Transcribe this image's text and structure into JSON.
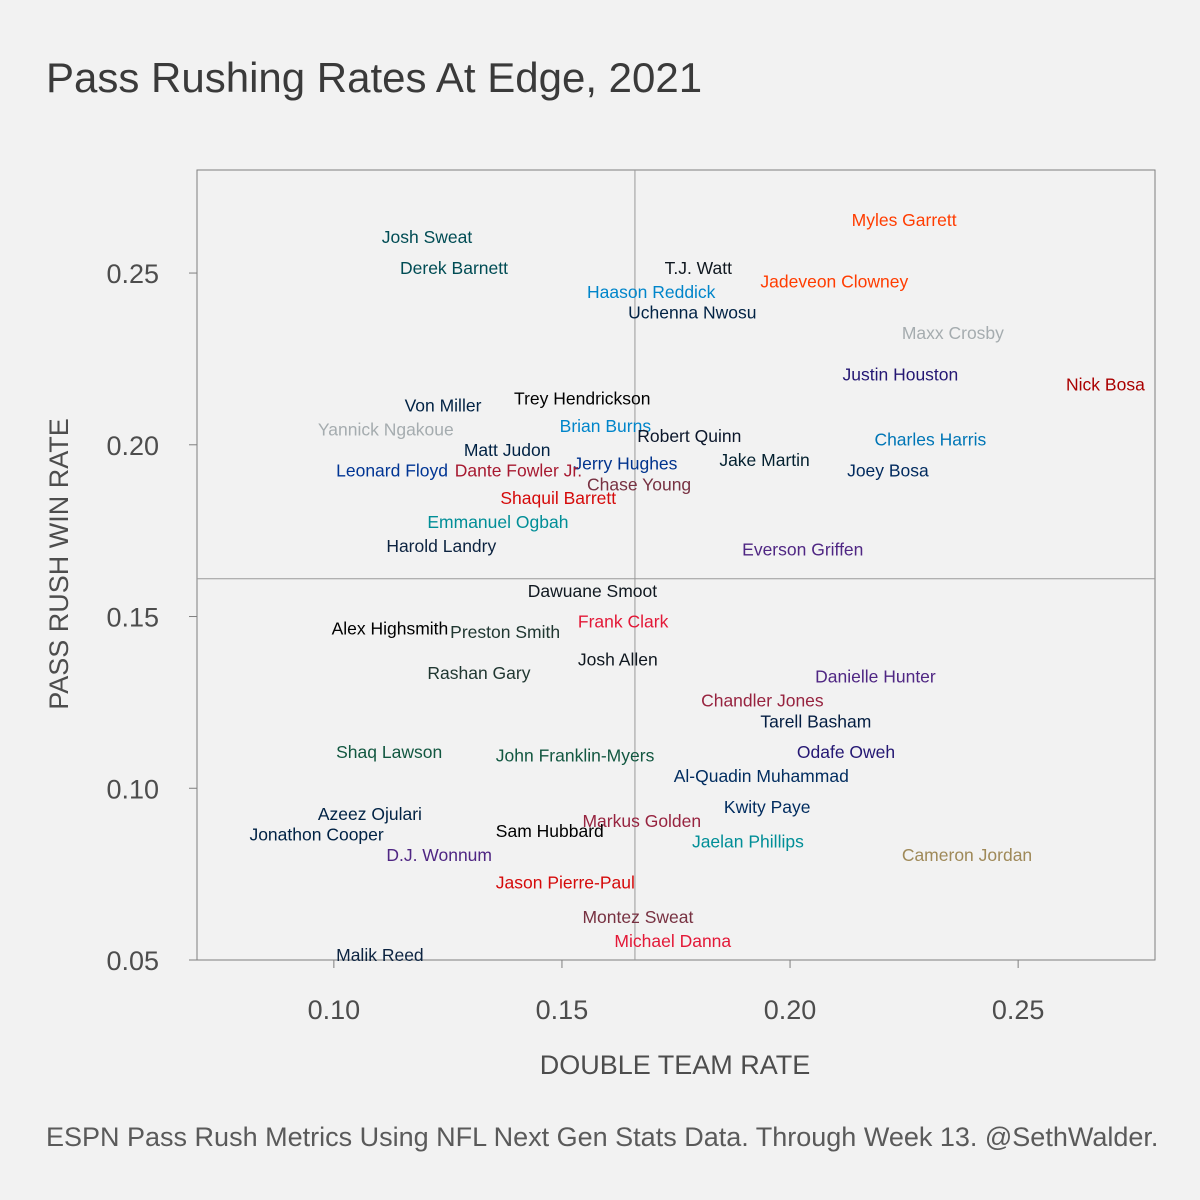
{
  "chart_data": {
    "type": "scatter",
    "title": "Pass Rushing Rates At Edge, 2021",
    "caption": "ESPN Pass Rush Metrics Using NFL Next Gen Stats Data. Through Week 13. @SethWalder.",
    "xlabel": "DOUBLE TEAM RATE",
    "ylabel": "PASS RUSH WIN RATE",
    "xlim": [
      0.07,
      0.28
    ],
    "ylim": [
      0.05,
      0.28
    ],
    "xticks": [
      "0.10",
      "0.15",
      "0.20",
      "0.25"
    ],
    "yticks": [
      "0.05",
      "0.10",
      "0.15",
      "0.20",
      "0.25"
    ],
    "grid": false,
    "reference_lines": {
      "x": 0.166,
      "y": 0.161
    },
    "points": [
      {
        "name": "Myles Garrett",
        "x": 0.2135,
        "y": 0.2655,
        "color": "#FF3C00"
      },
      {
        "name": "Josh Sweat",
        "x": 0.1105,
        "y": 0.2605,
        "color": "#004C54"
      },
      {
        "name": "T.J. Watt",
        "x": 0.1725,
        "y": 0.2515,
        "color": "#101820"
      },
      {
        "name": "Derek Barnett",
        "x": 0.1145,
        "y": 0.2515,
        "color": "#004C54"
      },
      {
        "name": "Jadeveon Clowney",
        "x": 0.1935,
        "y": 0.2475,
        "color": "#FF3C00"
      },
      {
        "name": "Haason Reddick",
        "x": 0.1555,
        "y": 0.2445,
        "color": "#0085CA"
      },
      {
        "name": "Uchenna Nwosu",
        "x": 0.1645,
        "y": 0.2385,
        "color": "#002244"
      },
      {
        "name": "Maxx Crosby",
        "x": 0.2245,
        "y": 0.2325,
        "color": "#A5ACAF"
      },
      {
        "name": "Justin Houston",
        "x": 0.2115,
        "y": 0.2205,
        "color": "#241773"
      },
      {
        "name": "Nick Bosa",
        "x": 0.2605,
        "y": 0.2175,
        "color": "#AA0000"
      },
      {
        "name": "Trey Hendrickson",
        "x": 0.1395,
        "y": 0.2135,
        "color": "#000000"
      },
      {
        "name": "Von Miller",
        "x": 0.1155,
        "y": 0.2115,
        "color": "#002244"
      },
      {
        "name": "Yannick Ngakoue",
        "x": 0.0965,
        "y": 0.2045,
        "color": "#A5ACAF"
      },
      {
        "name": "Brian Burns",
        "x": 0.1495,
        "y": 0.2055,
        "color": "#0085CA"
      },
      {
        "name": "Robert Quinn",
        "x": 0.1665,
        "y": 0.2025,
        "color": "#0B162A"
      },
      {
        "name": "Charles Harris",
        "x": 0.2185,
        "y": 0.2015,
        "color": "#0076B6"
      },
      {
        "name": "Matt Judon",
        "x": 0.1285,
        "y": 0.1985,
        "color": "#002244"
      },
      {
        "name": "Jerry Hughes",
        "x": 0.1525,
        "y": 0.1945,
        "color": "#00338D"
      },
      {
        "name": "Jake Martin",
        "x": 0.1845,
        "y": 0.1955,
        "color": "#03202F"
      },
      {
        "name": "Leonard Floyd",
        "x": 0.1005,
        "y": 0.1925,
        "color": "#003594"
      },
      {
        "name": "Dante Fowler Jr.",
        "x": 0.1265,
        "y": 0.1925,
        "color": "#A71930"
      },
      {
        "name": "Joey Bosa",
        "x": 0.2125,
        "y": 0.1925,
        "color": "#002A5E"
      },
      {
        "name": "Chase Young",
        "x": 0.1555,
        "y": 0.1885,
        "color": "#773141"
      },
      {
        "name": "Shaquil Barrett",
        "x": 0.1365,
        "y": 0.1845,
        "color": "#D50A0A"
      },
      {
        "name": "Emmanuel Ogbah",
        "x": 0.1205,
        "y": 0.1775,
        "color": "#008E97"
      },
      {
        "name": "Harold Landry",
        "x": 0.1115,
        "y": 0.1705,
        "color": "#0C2340"
      },
      {
        "name": "Everson Griffen",
        "x": 0.1895,
        "y": 0.1695,
        "color": "#4F2683"
      },
      {
        "name": "Dawuane Smoot",
        "x": 0.1425,
        "y": 0.1575,
        "color": "#101820"
      },
      {
        "name": "Frank Clark",
        "x": 0.1535,
        "y": 0.1485,
        "color": "#E31837"
      },
      {
        "name": "Alex Highsmith",
        "x": 0.0995,
        "y": 0.1465,
        "color": "#000000"
      },
      {
        "name": "Preston Smith",
        "x": 0.1255,
        "y": 0.1455,
        "color": "#203731"
      },
      {
        "name": "Josh Allen",
        "x": 0.1535,
        "y": 0.1375,
        "color": "#101820"
      },
      {
        "name": "Rashan Gary",
        "x": 0.1205,
        "y": 0.1335,
        "color": "#203731"
      },
      {
        "name": "Danielle Hunter",
        "x": 0.2055,
        "y": 0.1325,
        "color": "#4F2683"
      },
      {
        "name": "Chandler Jones",
        "x": 0.1805,
        "y": 0.1255,
        "color": "#97233F"
      },
      {
        "name": "Tarell Basham",
        "x": 0.1935,
        "y": 0.1195,
        "color": "#041E42"
      },
      {
        "name": "Shaq Lawson",
        "x": 0.1005,
        "y": 0.1105,
        "color": "#125740"
      },
      {
        "name": "John Franklin-Myers",
        "x": 0.1355,
        "y": 0.1095,
        "color": "#125740"
      },
      {
        "name": "Odafe Oweh",
        "x": 0.2015,
        "y": 0.1105,
        "color": "#241773"
      },
      {
        "name": "Al-Quadin Muhammad",
        "x": 0.1745,
        "y": 0.1035,
        "color": "#002C5F"
      },
      {
        "name": "Kwity Paye",
        "x": 0.1855,
        "y": 0.0945,
        "color": "#002C5F"
      },
      {
        "name": "Azeez Ojulari",
        "x": 0.0965,
        "y": 0.0925,
        "color": "#002244"
      },
      {
        "name": "Markus Golden",
        "x": 0.1545,
        "y": 0.0905,
        "color": "#97233F"
      },
      {
        "name": "Jonathon Cooper",
        "x": 0.0815,
        "y": 0.0865,
        "color": "#002244"
      },
      {
        "name": "Sam Hubbard",
        "x": 0.1355,
        "y": 0.0875,
        "color": "#000000"
      },
      {
        "name": "Jaelan Phillips",
        "x": 0.1785,
        "y": 0.0845,
        "color": "#008E97"
      },
      {
        "name": "D.J. Wonnum",
        "x": 0.1115,
        "y": 0.0805,
        "color": "#4F2683"
      },
      {
        "name": "Cameron Jordan",
        "x": 0.2245,
        "y": 0.0805,
        "color": "#9F8958"
      },
      {
        "name": "Jason Pierre-Paul",
        "x": 0.1355,
        "y": 0.0725,
        "color": "#D50A0A"
      },
      {
        "name": "Montez Sweat",
        "x": 0.1545,
        "y": 0.0625,
        "color": "#773141"
      },
      {
        "name": "Michael Danna",
        "x": 0.1615,
        "y": 0.0555,
        "color": "#E31837"
      },
      {
        "name": "Malik Reed",
        "x": 0.1005,
        "y": 0.0515,
        "color": "#0C2340"
      }
    ]
  }
}
